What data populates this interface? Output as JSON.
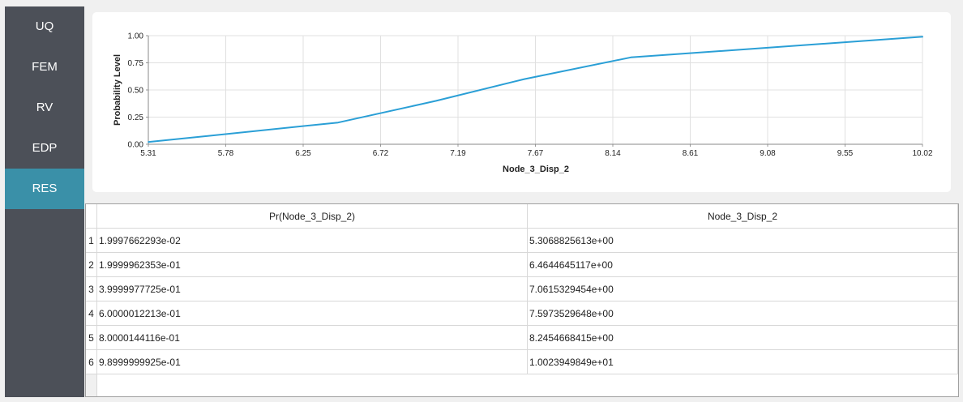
{
  "sidebar": {
    "items": [
      {
        "label": "UQ"
      },
      {
        "label": "FEM"
      },
      {
        "label": "RV"
      },
      {
        "label": "EDP"
      },
      {
        "label": "RES"
      }
    ],
    "active_index": 4
  },
  "colors": {
    "sidebar_bg": "#4c5058",
    "sidebar_active": "#3a90a8",
    "series_line": "#2a9fd6",
    "grid": "#e0e0e0"
  },
  "chart_data": {
    "type": "line",
    "xlabel": "Node_3_Disp_2",
    "ylabel": "Probability Level",
    "xlim": [
      5.31,
      10.02
    ],
    "ylim": [
      0.0,
      1.0
    ],
    "x_ticks": [
      "5.31",
      "5.78",
      "6.25",
      "6.72",
      "7.19",
      "7.67",
      "8.14",
      "8.61",
      "9.08",
      "9.55",
      "10.02"
    ],
    "y_ticks": [
      "0.00",
      "0.25",
      "0.50",
      "0.75",
      "1.00"
    ],
    "grid": true,
    "series": [
      {
        "x": [
          5.3068825613,
          6.4644645117,
          7.0615329454,
          7.5973529648,
          8.2454668415,
          10.023949849
        ],
        "y": [
          0.019997662293,
          0.19999962353,
          0.39999977725,
          0.60000012213,
          0.80000144116,
          0.98999999925
        ]
      }
    ]
  },
  "table": {
    "columns": [
      "Pr(Node_3_Disp_2)",
      "Node_3_Disp_2"
    ],
    "rows": [
      {
        "num": "1",
        "c1": "1.9997662293e-02",
        "c2": "5.3068825613e+00"
      },
      {
        "num": "2",
        "c1": "1.9999962353e-01",
        "c2": "6.4644645117e+00"
      },
      {
        "num": "3",
        "c1": "3.9999977725e-01",
        "c2": "7.0615329454e+00"
      },
      {
        "num": "4",
        "c1": "6.0000012213e-01",
        "c2": "7.5973529648e+00"
      },
      {
        "num": "5",
        "c1": "8.0000144116e-01",
        "c2": "8.2454668415e+00"
      },
      {
        "num": "6",
        "c1": "9.8999999925e-01",
        "c2": "1.0023949849e+01"
      }
    ]
  }
}
